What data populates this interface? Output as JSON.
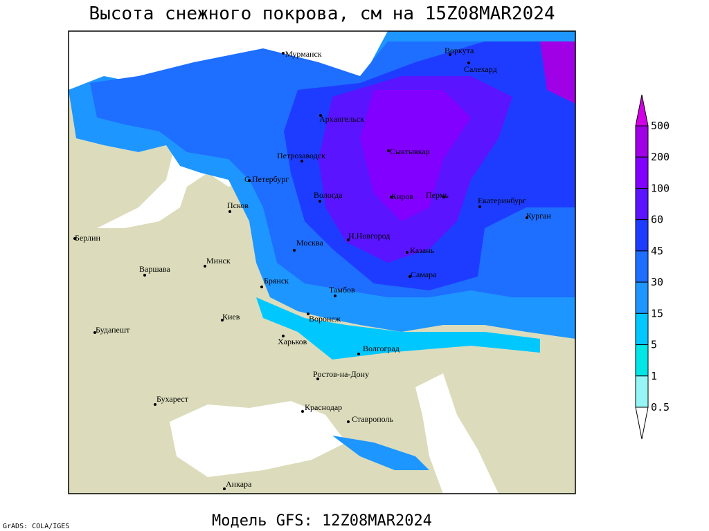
{
  "header": {
    "title": "Высота снежного покрова, см на 15Z08MAR2024"
  },
  "footer": {
    "model": "Модель GFS: 12Z08MAR2024",
    "credit": "GrADS: COLA/IGES"
  },
  "cities": [
    "Мурманск",
    "Воркута",
    "Салехард",
    "Архангельск",
    "Сыктывкар",
    "Петрозаводск",
    "С.Петербург",
    "Вологда",
    "Киров",
    "Пермь",
    "Екатеринбург",
    "Курган",
    "Псков",
    "Берлин",
    "Н.Новгород",
    "Москва",
    "Казань",
    "Минск",
    "Варшава",
    "Брянск",
    "Тамбов",
    "Самара",
    "Воронеж",
    "Киев",
    "Будапешт",
    "Харьков",
    "Волгоград",
    "Ростов-на-Дону",
    "Бухарест",
    "Краснодар",
    "Ставрополь",
    "Анкара"
  ],
  "legend": {
    "levels": [
      500,
      200,
      100,
      60,
      45,
      30,
      15,
      5,
      1,
      0.5
    ],
    "colors": [
      "#d200e6",
      "#a000e6",
      "#8200ff",
      "#5a14ff",
      "#1e3cff",
      "#1e6eff",
      "#1e96ff",
      "#00c8ff",
      "#00e6e6",
      "#96f5f5",
      "#ffffff"
    ]
  }
}
